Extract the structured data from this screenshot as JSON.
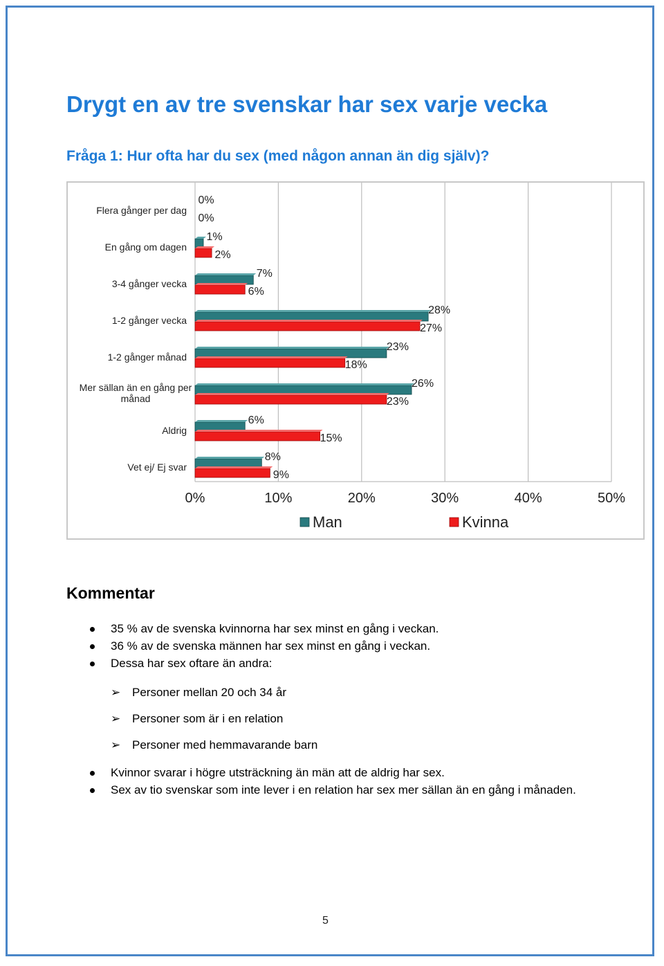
{
  "document": {
    "title": "Drygt en av tre svenskar har sex varje vecka",
    "question": "Fråga 1: Hur ofta har du sex (med någon annan än dig själv)?",
    "comment_heading": "Kommentar",
    "bullets_first": [
      "35 % av de svenska kvinnorna har sex minst en gång i veckan.",
      "36 % av de svenska männen har sex minst en gång i veckan.",
      "Dessa har sex oftare än andra:"
    ],
    "sub_bullets": [
      "Personer mellan 20 och 34 år",
      "Personer som är i en relation",
      "Personer med hemmavarande barn"
    ],
    "bullets_second": [
      "Kvinnor svarar i högre utsträckning än män att de aldrig har sex.",
      "Sex av tio svenskar som inte lever i en relation har sex mer sällan än en gång i månaden."
    ],
    "page_number": "5",
    "sub_bullet_glyph": "➢"
  },
  "chart_data": {
    "type": "bar",
    "orientation": "horizontal",
    "categories": [
      "Flera gånger per dag",
      "En gång om dagen",
      "3-4 gånger vecka",
      "1-2 gånger vecka",
      "1-2 gånger månad",
      "Mer sällan än en gång per månad",
      "Aldrig",
      "Vet ej/ Ej svar"
    ],
    "series": [
      {
        "name": "Man",
        "values": [
          0,
          1,
          7,
          28,
          23,
          26,
          6,
          8
        ],
        "color": "#2a7a7e"
      },
      {
        "name": "Kvinna",
        "values": [
          0,
          2,
          6,
          27,
          18,
          23,
          15,
          9
        ],
        "color": "#ee1c1c"
      }
    ],
    "value_labels": [
      [
        "0%",
        "1%",
        "7%",
        "28%",
        "23%",
        "26%",
        "6%",
        "8%"
      ],
      [
        "0%",
        "2%",
        "6%",
        "27%",
        "18%",
        "23%",
        "15%",
        "9%"
      ]
    ],
    "xlim": [
      0,
      50
    ],
    "x_ticks": [
      "0%",
      "10%",
      "20%",
      "30%",
      "40%",
      "50%"
    ],
    "grid": true,
    "legend_position": "bottom",
    "title": "",
    "xlabel": "",
    "ylabel": ""
  }
}
